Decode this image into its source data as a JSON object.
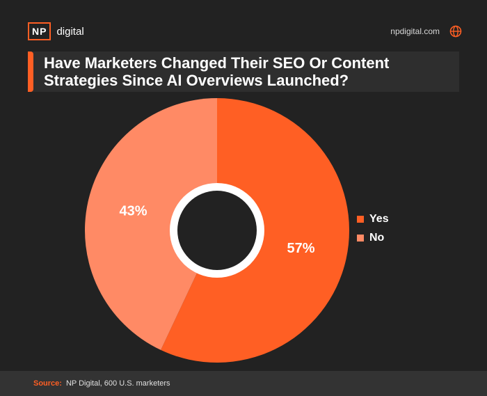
{
  "brand": {
    "logo_box": "NP",
    "logo_text": "digital"
  },
  "site": {
    "url": "npdigital.com",
    "icon": "globe-icon"
  },
  "colors": {
    "background": "#222222",
    "accent": "#ff5f24",
    "yes": "#ff5f24",
    "no": "#ff8a65"
  },
  "chart_data": {
    "type": "pie",
    "title": "Have Marketers Changed Their SEO Or Content Strategies Since AI Overviews Launched?",
    "categories": [
      "Yes",
      "No"
    ],
    "values": [
      57,
      43
    ],
    "labels": [
      "57%",
      "43%"
    ],
    "colors": [
      "#ff5f24",
      "#ff8a65"
    ],
    "donut": true,
    "legend_position": "right"
  },
  "footer": {
    "label": "Source:",
    "text": "NP Digital, 600 U.S. marketers"
  }
}
